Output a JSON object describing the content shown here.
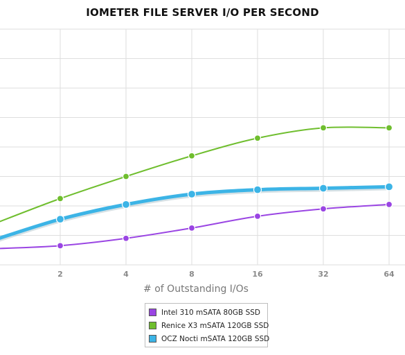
{
  "chart_data": {
    "type": "line",
    "title": "IOMETER FILE SERVER I/O PER SECOND",
    "xlabel": "# of Outstanding I/Os",
    "ylabel": "",
    "x": [
      "1",
      "2",
      "4",
      "8",
      "16",
      "32",
      "64"
    ],
    "x_tick_labels": [
      "",
      "2",
      "4",
      "8",
      "16",
      "32",
      "64"
    ],
    "ylim": [
      0,
      8
    ],
    "grid": true,
    "legend_position": "bottom-center",
    "series": [
      {
        "name": "Intel 310 mSATA 80GB SSD",
        "color": "#9a45e3",
        "values": [
          0.55,
          0.65,
          0.9,
          1.25,
          1.65,
          1.9,
          2.05
        ]
      },
      {
        "name": "Renice X3 mSATA 120GB SSD",
        "color": "#6fbe2e",
        "values": [
          1.4,
          2.25,
          3.0,
          3.7,
          4.3,
          4.65,
          4.65
        ]
      },
      {
        "name": "OCZ Nocti mSATA 120GB SSD",
        "color": "#3cb4e6",
        "values": [
          0.85,
          1.55,
          2.05,
          2.4,
          2.55,
          2.6,
          2.65
        ]
      }
    ]
  }
}
